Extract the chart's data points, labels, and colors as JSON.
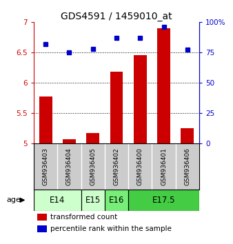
{
  "title": "GDS4591 / 1459010_at",
  "samples": [
    "GSM936403",
    "GSM936404",
    "GSM936405",
    "GSM936402",
    "GSM936400",
    "GSM936401",
    "GSM936406"
  ],
  "red_values": [
    5.77,
    5.06,
    5.17,
    6.18,
    6.45,
    6.9,
    5.25
  ],
  "blue_values": [
    82,
    75,
    78,
    87,
    87,
    96,
    77
  ],
  "ylim_left": [
    5.0,
    7.0
  ],
  "ylim_right": [
    0,
    100
  ],
  "yticks_left": [
    5.0,
    5.5,
    6.0,
    6.5,
    7.0
  ],
  "yticks_right": [
    0,
    25,
    50,
    75,
    100
  ],
  "ytick_labels_left": [
    "5",
    "5.5",
    "6",
    "6.5",
    "7"
  ],
  "ytick_labels_right": [
    "0",
    "25",
    "50",
    "75",
    "100%"
  ],
  "groups": [
    {
      "label": "E14",
      "indices": [
        0,
        1
      ],
      "color": "#ccffcc"
    },
    {
      "label": "E15",
      "indices": [
        2
      ],
      "color": "#ccffcc"
    },
    {
      "label": "E16",
      "indices": [
        3
      ],
      "color": "#77ee77"
    },
    {
      "label": "E17.5",
      "indices": [
        4,
        5,
        6
      ],
      "color": "#44cc44"
    }
  ],
  "bar_color": "#cc0000",
  "dot_color": "#0000cc",
  "bar_bottom": 5.0,
  "age_label": "age",
  "legend_red": "transformed count",
  "legend_blue": "percentile rank within the sample",
  "sample_bg_color": "#cccccc",
  "title_fontsize": 10,
  "tick_fontsize": 7.5,
  "sample_fontsize": 6.5,
  "group_fontsize": 8.5,
  "legend_fontsize": 7.5
}
